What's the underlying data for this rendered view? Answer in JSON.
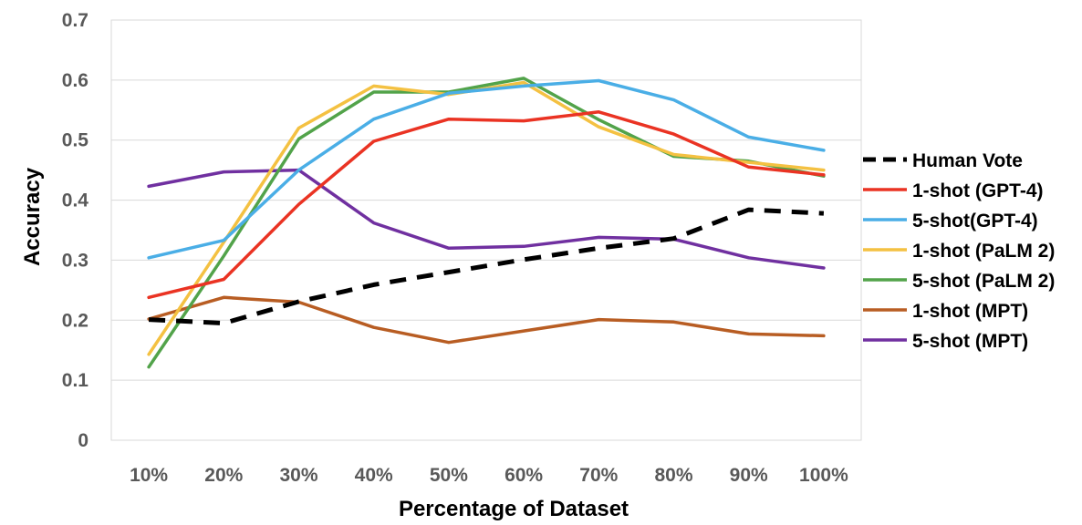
{
  "chart_data": {
    "type": "line",
    "title": "",
    "xlabel": "Percentage of Dataset",
    "ylabel": "Accuracy",
    "categories": [
      "10%",
      "20%",
      "30%",
      "40%",
      "50%",
      "60%",
      "70%",
      "80%",
      "90%",
      "100%"
    ],
    "y_ticks": [
      "0",
      "0.1",
      "0.2",
      "0.3",
      "0.4",
      "0.5",
      "0.6",
      "0.7"
    ],
    "ylim": [
      0,
      0.7
    ],
    "grid": "horizontal",
    "legend_position": "right",
    "series": [
      {
        "name": "Human Vote",
        "color": "#000000",
        "dashed": true,
        "values": [
          0.201,
          0.195,
          0.231,
          0.259,
          0.28,
          0.301,
          0.32,
          0.336,
          0.384,
          0.378
        ]
      },
      {
        "name": "1-shot (GPT-4)",
        "color": "#ea3323",
        "values": [
          0.238,
          0.268,
          0.393,
          0.498,
          0.535,
          0.532,
          0.547,
          0.51,
          0.455,
          0.442
        ]
      },
      {
        "name": "5-shot(GPT-4)",
        "color": "#4aaee6",
        "values": [
          0.304,
          0.333,
          0.45,
          0.535,
          0.578,
          0.59,
          0.599,
          0.567,
          0.505,
          0.483
        ]
      },
      {
        "name": "1-shot (PaLM 2)",
        "color": "#f4c142",
        "values": [
          0.143,
          0.33,
          0.52,
          0.59,
          0.576,
          0.596,
          0.522,
          0.476,
          0.463,
          0.45
        ]
      },
      {
        "name": "5-shot (PaLM 2)",
        "color": "#52a34a",
        "values": [
          0.122,
          0.307,
          0.502,
          0.58,
          0.58,
          0.603,
          0.534,
          0.473,
          0.465,
          0.44
        ]
      },
      {
        "name": "1-shot (MPT)",
        "color": "#b85d23",
        "values": [
          0.202,
          0.238,
          0.23,
          0.188,
          0.163,
          0.182,
          0.201,
          0.197,
          0.177,
          0.174
        ]
      },
      {
        "name": "5-shot (MPT)",
        "color": "#7030a0",
        "values": [
          0.423,
          0.447,
          0.45,
          0.362,
          0.32,
          0.323,
          0.338,
          0.335,
          0.304,
          0.287
        ]
      }
    ]
  }
}
